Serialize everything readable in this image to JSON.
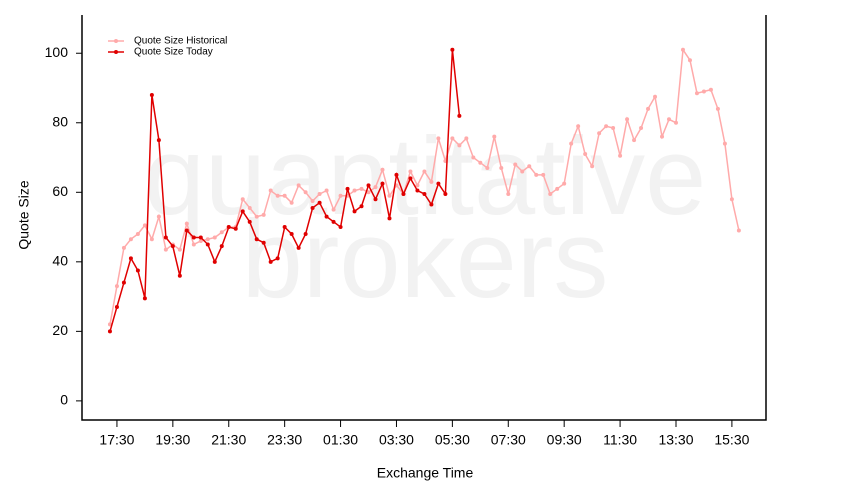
{
  "chart_data": {
    "type": "line",
    "watermark": [
      "quantitative",
      "brokers"
    ],
    "x_label": "Exchange Time",
    "y_label": "Quote Size",
    "legend": "top-left",
    "xlim": [
      16.25,
      40.72
    ],
    "ylim": [
      -5.5,
      111
    ],
    "xticks": [
      {
        "value": 17.5,
        "label": "17:30"
      },
      {
        "value": 19.5,
        "label": "19:30"
      },
      {
        "value": 21.5,
        "label": "21:30"
      },
      {
        "value": 23.5,
        "label": "23:30"
      },
      {
        "value": 25.5,
        "label": "01:30"
      },
      {
        "value": 27.5,
        "label": "03:30"
      },
      {
        "value": 29.5,
        "label": "05:30"
      },
      {
        "value": 31.5,
        "label": "07:30"
      },
      {
        "value": 33.5,
        "label": "09:30"
      },
      {
        "value": 35.5,
        "label": "11:30"
      },
      {
        "value": 37.5,
        "label": "13:30"
      },
      {
        "value": 39.5,
        "label": "15:30"
      }
    ],
    "yticks": [
      0,
      20,
      40,
      60,
      80,
      100
    ],
    "series": [
      {
        "name": "Quote Size Historical",
        "color": "#ffaaaa",
        "x": [
          17.25,
          17.5,
          17.75,
          18,
          18.25,
          18.5,
          18.75,
          19,
          19.25,
          19.5,
          19.75,
          20,
          20.25,
          20.5,
          20.75,
          21,
          21.25,
          21.5,
          21.75,
          22,
          22.25,
          22.5,
          22.75,
          23,
          23.25,
          23.5,
          23.75,
          24,
          24.25,
          24.5,
          24.75,
          25,
          25.25,
          25.5,
          25.75,
          26,
          26.25,
          26.5,
          26.75,
          27,
          27.25,
          27.5,
          27.75,
          28,
          28.25,
          28.5,
          28.75,
          29,
          29.25,
          29.5,
          29.75,
          30,
          30.25,
          30.5,
          30.75,
          31,
          31.25,
          31.5,
          31.75,
          32,
          32.25,
          32.5,
          32.75,
          33,
          33.25,
          33.5,
          33.75,
          34,
          34.25,
          34.5,
          34.75,
          35,
          35.25,
          35.5,
          35.75,
          36,
          36.25,
          36.5,
          36.75,
          37,
          37.25,
          37.5,
          37.75,
          38,
          38.25,
          38.5,
          38.75,
          39,
          39.25,
          39.5,
          39.75
        ],
        "values": [
          22,
          33,
          44,
          46.5,
          48,
          50.5,
          46.5,
          53,
          43.5,
          45,
          43.5,
          51,
          45,
          46,
          46.5,
          47,
          48.5,
          50,
          50,
          58,
          55.5,
          53,
          53.5,
          60.5,
          59,
          59,
          57,
          62,
          60,
          57.5,
          59.5,
          60.5,
          55,
          59,
          59,
          60.5,
          61,
          60,
          61.5,
          66.5,
          59,
          62,
          59.5,
          66,
          62,
          66,
          63,
          75.5,
          69,
          75.5,
          73.5,
          75.5,
          70,
          68.5,
          67,
          76,
          67,
          59.5,
          68,
          66,
          67.5,
          65,
          65,
          59.5,
          61,
          62.5,
          74,
          79,
          71,
          67.5,
          77,
          79,
          78.5,
          70.5,
          81,
          75,
          78.5,
          84,
          87.5,
          76,
          81,
          80,
          101,
          98,
          88.5,
          89,
          89.5,
          84,
          74,
          58,
          49
        ]
      },
      {
        "name": "Quote Size Today",
        "color": "#e00000",
        "x": [
          17.25,
          17.5,
          17.75,
          18,
          18.25,
          18.5,
          18.75,
          19,
          19.25,
          19.5,
          19.75,
          20,
          20.25,
          20.5,
          20.75,
          21,
          21.25,
          21.5,
          21.75,
          22,
          22.25,
          22.5,
          22.75,
          23,
          23.25,
          23.5,
          23.75,
          24,
          24.25,
          24.5,
          24.75,
          25,
          25.25,
          25.5,
          25.75,
          26,
          26.25,
          26.5,
          26.75,
          27,
          27.25,
          27.5,
          27.75,
          28,
          28.25,
          28.5,
          28.75,
          29,
          29.25,
          29.5,
          29.75
        ],
        "values": [
          20,
          27,
          34,
          41,
          37.5,
          29.5,
          88,
          75,
          47,
          44.5,
          36,
          49,
          47,
          47,
          45,
          40,
          44.5,
          50,
          49.5,
          54.5,
          51.5,
          46.5,
          45.5,
          40,
          41,
          50,
          48,
          44,
          48,
          55.5,
          57,
          53,
          51.5,
          50,
          61,
          54.5,
          56,
          62,
          58,
          62.5,
          52.5,
          65,
          59.5,
          64,
          60.5,
          59.5,
          56.5,
          62.5,
          59.5,
          101,
          82
        ]
      }
    ]
  }
}
